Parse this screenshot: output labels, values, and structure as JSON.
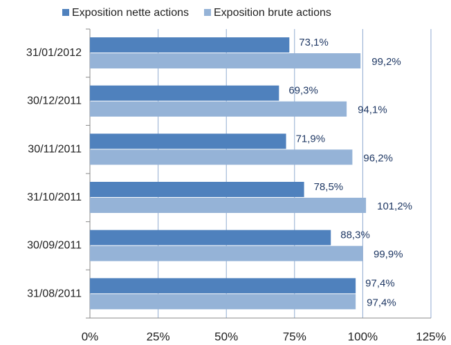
{
  "chart_data": {
    "type": "hbar",
    "categories": [
      "31/01/2012",
      "30/12/2011",
      "30/11/2011",
      "31/10/2011",
      "30/09/2011",
      "31/08/2011"
    ],
    "series": [
      {
        "name": "Exposition nette actions",
        "color": "#4f81bd",
        "values": [
          73.1,
          69.3,
          71.9,
          78.5,
          88.3,
          97.4
        ],
        "value_labels": [
          "73,1%",
          "69,3%",
          "71,9%",
          "78,5%",
          "88,3%",
          "97,4%"
        ]
      },
      {
        "name": "Exposition brute actions",
        "color": "#95b3d7",
        "values": [
          99.2,
          94.1,
          96.2,
          101.2,
          99.9,
          97.4
        ],
        "value_labels": [
          "99,2%",
          "94,1%",
          "96,2%",
          "101,2%",
          "99,9%",
          "97,4%"
        ]
      }
    ],
    "xlim": [
      0,
      125
    ],
    "xticks": [
      {
        "value": 0,
        "label": "0%"
      },
      {
        "value": 25,
        "label": "25%"
      },
      {
        "value": 50,
        "label": "50%"
      },
      {
        "value": 75,
        "label": "75%"
      },
      {
        "value": 100,
        "label": "100%"
      },
      {
        "value": 125,
        "label": "125%"
      }
    ],
    "grid": true,
    "legend": "top"
  }
}
